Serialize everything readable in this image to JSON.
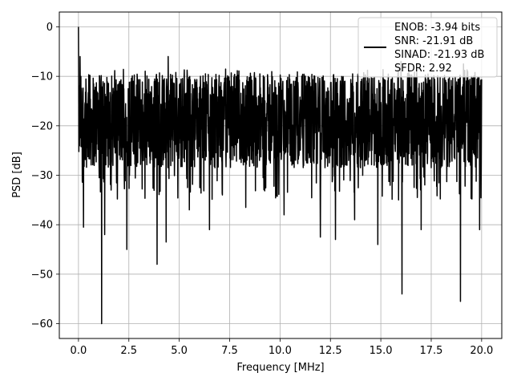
{
  "chart_data": {
    "type": "line",
    "xlabel": "Frequency [MHz]",
    "ylabel": "PSD [dB]",
    "xlim": [
      -0.95,
      21.0
    ],
    "ylim": [
      -63,
      3
    ],
    "x_ticks": [
      0.0,
      2.5,
      5.0,
      7.5,
      10.0,
      12.5,
      15.0,
      17.5,
      20.0
    ],
    "x_tick_labels": [
      "0.0",
      "2.5",
      "5.0",
      "7.5",
      "10.0",
      "12.5",
      "15.0",
      "17.5",
      "20.0"
    ],
    "y_ticks": [
      0,
      -10,
      -20,
      -30,
      -40,
      -50,
      -60
    ],
    "y_tick_labels": [
      "0",
      "−10",
      "−20",
      "−30",
      "−40",
      "−50",
      "−60"
    ],
    "grid": true,
    "legend_placement": "top-right",
    "series": [
      {
        "name": "ENOB: -3.94 bits\nSNR: -21.91 dB\nSINAD: -21.93 dB\nSFDR: 2.92",
        "color": "#000000",
        "x_range": [
          0.0,
          20.0
        ],
        "baseline_dB": -19,
        "envelope_top_dB": -10,
        "envelope_bottom_dB": -30,
        "peaks": [
          {
            "x": 0.0,
            "y": 0.0
          },
          {
            "x": 0.08,
            "y": -6.0
          },
          {
            "x": 4.45,
            "y": -6.0
          },
          {
            "x": 16.0,
            "y": -7.0
          },
          {
            "x": 19.1,
            "y": -7.5
          }
        ],
        "dips": [
          {
            "x": 1.15,
            "y": -60.0
          },
          {
            "x": 18.95,
            "y": -55.5
          },
          {
            "x": 16.05,
            "y": -54.0
          },
          {
            "x": 3.9,
            "y": -48.0
          },
          {
            "x": 2.4,
            "y": -45.0
          },
          {
            "x": 14.85,
            "y": -44.0
          },
          {
            "x": 4.35,
            "y": -43.5
          },
          {
            "x": 12.75,
            "y": -43.0
          },
          {
            "x": 12.0,
            "y": -42.5
          },
          {
            "x": 1.3,
            "y": -42.0
          },
          {
            "x": 6.5,
            "y": -41.0
          },
          {
            "x": 19.9,
            "y": -41.0
          },
          {
            "x": 0.25,
            "y": -40.5
          },
          {
            "x": 17.0,
            "y": -41.0
          },
          {
            "x": 10.2,
            "y": -38.0
          },
          {
            "x": 13.7,
            "y": -39.0
          },
          {
            "x": 8.3,
            "y": -36.5
          },
          {
            "x": 5.5,
            "y": -37.0
          }
        ]
      }
    ],
    "legend": {
      "lines": [
        "ENOB: -3.94 bits",
        "SNR: -21.91 dB",
        "SINAD: -21.93 dB",
        "SFDR: 2.92"
      ]
    }
  }
}
